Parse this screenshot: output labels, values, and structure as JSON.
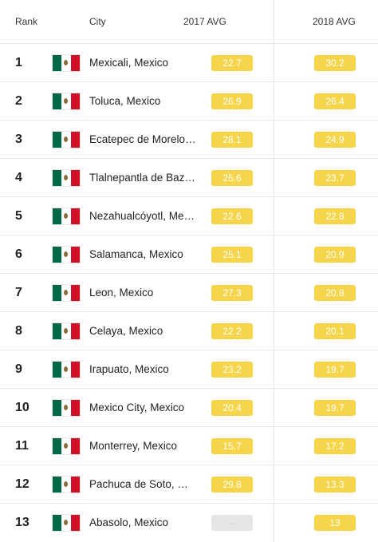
{
  "header": {
    "rank": "Rank",
    "city": "City",
    "avg_2017": "2017 AVG",
    "avg_2018": "2018 AVG"
  },
  "colors": {
    "badge": "#f6d54a",
    "badge_missing": "#e6e6e6"
  },
  "rows": [
    {
      "rank": "1",
      "flag": "mexico-flag-icon",
      "city": "Mexicali, Mexico",
      "avg_2017": "22.7",
      "avg_2018": "30.2"
    },
    {
      "rank": "2",
      "flag": "mexico-flag-icon",
      "city": "Toluca, Mexico",
      "avg_2017": "26.9",
      "avg_2018": "26.4"
    },
    {
      "rank": "3",
      "flag": "mexico-flag-icon",
      "city": "Ecatepec de Morelo…",
      "avg_2017": "28.1",
      "avg_2018": "24.9"
    },
    {
      "rank": "4",
      "flag": "mexico-flag-icon",
      "city": "Tlalnepantla de Baz…",
      "avg_2017": "25.6",
      "avg_2018": "23.7"
    },
    {
      "rank": "5",
      "flag": "mexico-flag-icon",
      "city": "Nezahualcóyotl, Me…",
      "avg_2017": "22.6",
      "avg_2018": "22.8"
    },
    {
      "rank": "6",
      "flag": "mexico-flag-icon",
      "city": "Salamanca, Mexico",
      "avg_2017": "25.1",
      "avg_2018": "20.9"
    },
    {
      "rank": "7",
      "flag": "mexico-flag-icon",
      "city": "Leon, Mexico",
      "avg_2017": "27.3",
      "avg_2018": "20.8"
    },
    {
      "rank": "8",
      "flag": "mexico-flag-icon",
      "city": "Celaya, Mexico",
      "avg_2017": "22.2",
      "avg_2018": "20.1"
    },
    {
      "rank": "9",
      "flag": "mexico-flag-icon",
      "city": "Irapuato, Mexico",
      "avg_2017": "23.2",
      "avg_2018": "19.7"
    },
    {
      "rank": "10",
      "flag": "mexico-flag-icon",
      "city": "Mexico City, Mexico",
      "avg_2017": "20.4",
      "avg_2018": "19.7"
    },
    {
      "rank": "11",
      "flag": "mexico-flag-icon",
      "city": "Monterrey, Mexico",
      "avg_2017": "15.7",
      "avg_2018": "17.2"
    },
    {
      "rank": "12",
      "flag": "mexico-flag-icon",
      "city": "Pachuca de Soto, …",
      "avg_2017": "29.8",
      "avg_2018": "13.3"
    },
    {
      "rank": "13",
      "flag": "mexico-flag-icon",
      "city": "Abasolo, Mexico",
      "avg_2017": "–",
      "avg_2018": "13"
    }
  ]
}
